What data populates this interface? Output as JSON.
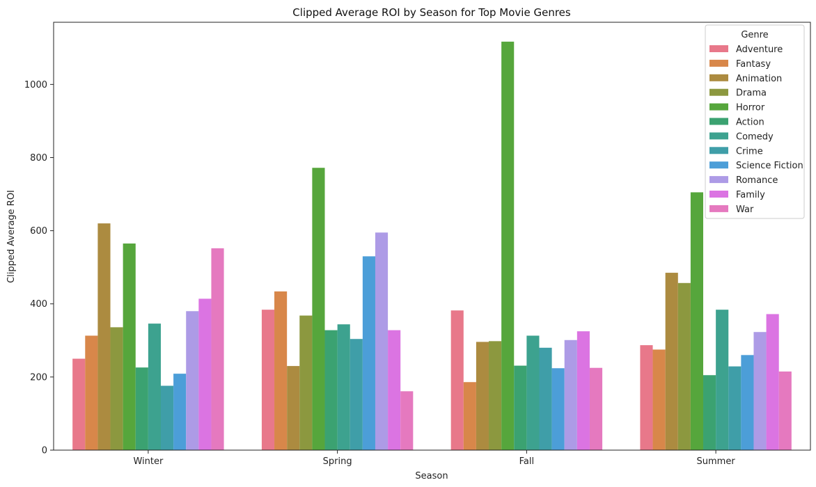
{
  "chart_data": {
    "type": "bar",
    "title": "Clipped Average ROI by Season for Top Movie Genres",
    "xlabel": "Season",
    "ylabel": "Clipped Average ROI",
    "categories": [
      "Winter",
      "Spring",
      "Fall",
      "Summer"
    ],
    "ylim": [
      0,
      1170
    ],
    "yticks": [
      0,
      200,
      400,
      600,
      800,
      1000
    ],
    "grid": false,
    "legend_title": "Genre",
    "legend_position": "top-right",
    "series": [
      {
        "name": "Adventure",
        "color": "#e8788a",
        "values": [
          250,
          384,
          382,
          287
        ]
      },
      {
        "name": "Fantasy",
        "color": "#d8874a",
        "values": [
          313,
          434,
          186,
          275
        ]
      },
      {
        "name": "Animation",
        "color": "#ac8b40",
        "values": [
          620,
          230,
          296,
          485
        ]
      },
      {
        "name": "Drama",
        "color": "#8c983f",
        "values": [
          336,
          368,
          298,
          457
        ]
      },
      {
        "name": "Horror",
        "color": "#56a63c",
        "values": [
          565,
          772,
          1117,
          705
        ]
      },
      {
        "name": "Action",
        "color": "#3ba271",
        "values": [
          226,
          328,
          231,
          205
        ]
      },
      {
        "name": "Comedy",
        "color": "#3da28f",
        "values": [
          346,
          344,
          313,
          384
        ]
      },
      {
        "name": "Crime",
        "color": "#3f9ea8",
        "values": [
          176,
          304,
          280,
          229
        ]
      },
      {
        "name": "Science Fiction",
        "color": "#4c9ed8",
        "values": [
          209,
          530,
          224,
          260
        ]
      },
      {
        "name": "Romance",
        "color": "#ad9be6",
        "values": [
          380,
          595,
          301,
          323
        ]
      },
      {
        "name": "Family",
        "color": "#db74e2",
        "values": [
          414,
          328,
          325,
          372
        ]
      },
      {
        "name": "War",
        "color": "#e579bf",
        "values": [
          552,
          161,
          225,
          215
        ]
      }
    ]
  }
}
